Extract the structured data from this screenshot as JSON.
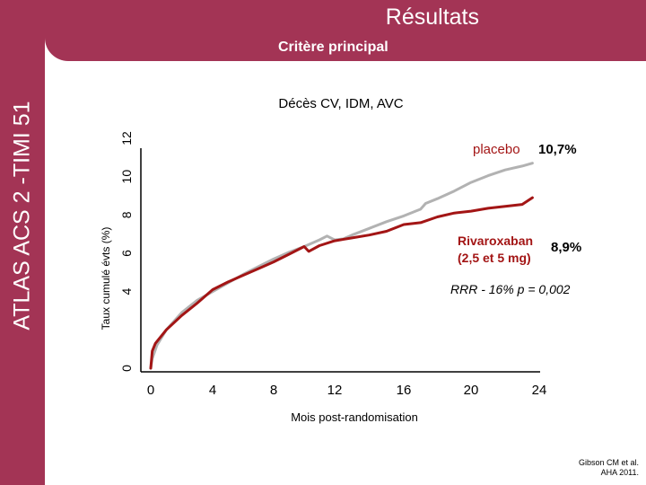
{
  "header": {
    "title": "Résultats"
  },
  "sidebar": {
    "label": "ATLAS ACS 2 -TIMI 51"
  },
  "subheader": {
    "label": "Critère principal"
  },
  "chart_data": {
    "type": "line",
    "title": "Décès CV, IDM, AVC",
    "xlabel": "Mois post-randomisation",
    "ylabel": "Taux cumulé évts (%)",
    "x_ticks": [
      "0",
      "4",
      "8",
      "12",
      "16",
      "20",
      "24"
    ],
    "y_ticks": [
      "0",
      "4",
      "6",
      "8",
      "10",
      "12"
    ],
    "xlim": [
      0,
      24
    ],
    "ylim": [
      0,
      12
    ],
    "grid": false,
    "series": [
      {
        "name": "placebo",
        "end_label": "10,7%",
        "color": "#B2B2B2",
        "x": [
          0,
          0.1,
          0.4,
          1,
          2,
          3,
          4,
          5,
          6,
          7,
          8,
          9,
          10,
          11,
          11.5,
          12,
          12.5,
          13,
          14,
          15,
          16,
          17,
          17.3,
          18,
          19,
          20,
          21,
          22,
          23,
          23.6
        ],
        "y": [
          0,
          0.5,
          1.2,
          2.0,
          2.9,
          3.55,
          4.0,
          4.45,
          4.9,
          5.3,
          5.7,
          6.05,
          6.35,
          6.7,
          6.9,
          6.7,
          6.75,
          6.95,
          7.3,
          7.65,
          7.95,
          8.3,
          8.6,
          8.85,
          9.25,
          9.7,
          10.05,
          10.35,
          10.55,
          10.7
        ]
      },
      {
        "name": "Rivaroxaban (2,5 et 5 mg)",
        "end_label": "8,9%",
        "color": "#A31515",
        "x": [
          0,
          0.1,
          0.3,
          1,
          2,
          3,
          4,
          5,
          6,
          7,
          8,
          9,
          10,
          10.3,
          11,
          12,
          13,
          14,
          15,
          16,
          17,
          18,
          19,
          20,
          21,
          22,
          23,
          23.6
        ],
        "y": [
          0,
          0.9,
          1.3,
          2.0,
          2.75,
          3.4,
          4.1,
          4.5,
          4.85,
          5.2,
          5.55,
          5.95,
          6.35,
          6.1,
          6.4,
          6.65,
          6.8,
          6.95,
          7.15,
          7.5,
          7.6,
          7.9,
          8.1,
          8.2,
          8.35,
          8.45,
          8.55,
          8.9
        ]
      }
    ],
    "annotations": [
      {
        "text": "RRR - 16% p = 0,002"
      }
    ]
  },
  "citation": {
    "line1": "Gibson CM et al.",
    "line2": "AHA 2011."
  }
}
